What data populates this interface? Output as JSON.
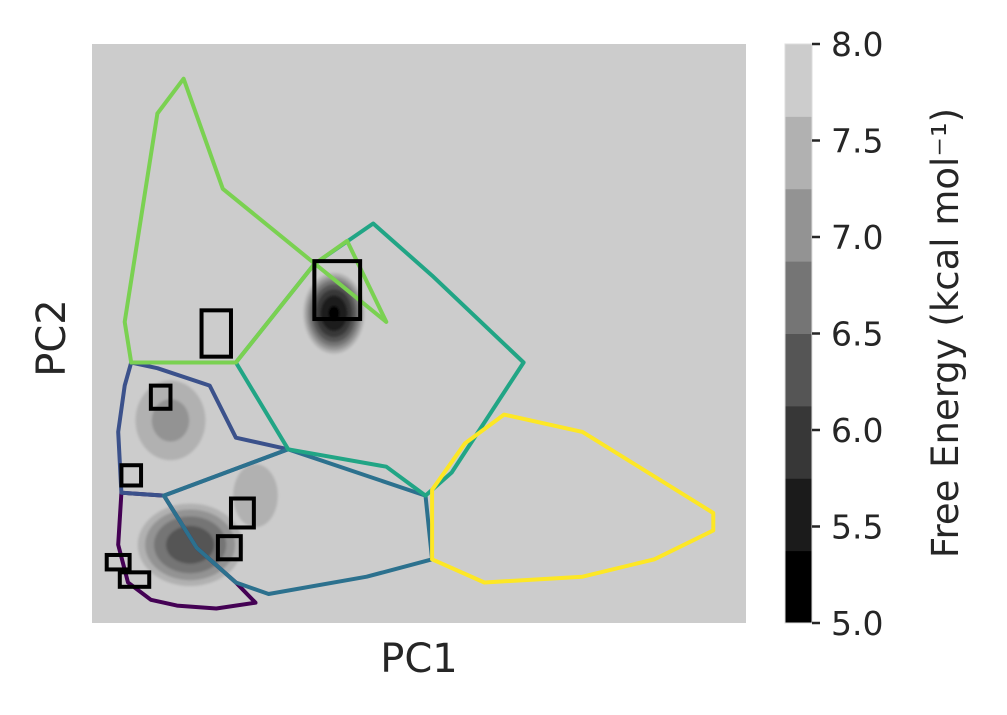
{
  "chart_data": {
    "type": "heatmap",
    "title": "",
    "xlabel": "PC1",
    "ylabel": "PC2",
    "x_ticks_shown": false,
    "y_ticks_shown": false,
    "background_color": "#cccccc",
    "colorbar": {
      "label": "Free Energy (kcal mol⁻¹)",
      "range": [
        5.0,
        8.0
      ],
      "ticks": [
        "5.0",
        "5.5",
        "6.0",
        "6.5",
        "7.0",
        "7.5",
        "8.0"
      ],
      "levels": [
        5.0,
        5.375,
        5.75,
        6.125,
        6.5,
        6.875,
        7.25,
        7.625,
        8.0
      ],
      "level_colors": [
        "#000000",
        "#1b1b1b",
        "#373737",
        "#555555",
        "#757575",
        "#939393",
        "#b1b1b1",
        "#cccccc"
      ]
    },
    "state_boundaries": [
      {
        "color": "#440154",
        "points": [
          [
            0.045,
            0.225
          ],
          [
            0.04,
            0.135
          ],
          [
            0.055,
            0.07
          ],
          [
            0.09,
            0.04
          ],
          [
            0.13,
            0.03
          ],
          [
            0.19,
            0.025
          ],
          [
            0.25,
            0.035
          ],
          [
            0.22,
            0.07
          ],
          [
            0.16,
            0.13
          ],
          [
            0.11,
            0.22
          ],
          [
            0.045,
            0.225
          ]
        ]
      },
      {
        "color": "#3b518b",
        "points": [
          [
            0.06,
            0.45
          ],
          [
            0.05,
            0.41
          ],
          [
            0.04,
            0.33
          ],
          [
            0.045,
            0.225
          ],
          [
            0.11,
            0.22
          ],
          [
            0.3,
            0.3
          ],
          [
            0.22,
            0.32
          ],
          [
            0.18,
            0.41
          ],
          [
            0.1,
            0.44
          ],
          [
            0.06,
            0.45
          ]
        ]
      },
      {
        "color": "#2c718e",
        "points": [
          [
            0.11,
            0.22
          ],
          [
            0.16,
            0.13
          ],
          [
            0.22,
            0.07
          ],
          [
            0.27,
            0.05
          ],
          [
            0.42,
            0.08
          ],
          [
            0.52,
            0.11
          ],
          [
            0.51,
            0.22
          ],
          [
            0.3,
            0.3
          ],
          [
            0.11,
            0.22
          ]
        ]
      },
      {
        "color": "#21a585",
        "points": [
          [
            0.22,
            0.45
          ],
          [
            0.34,
            0.62
          ],
          [
            0.43,
            0.69
          ],
          [
            0.52,
            0.6
          ],
          [
            0.66,
            0.45
          ],
          [
            0.55,
            0.26
          ],
          [
            0.51,
            0.22
          ],
          [
            0.45,
            0.27
          ],
          [
            0.3,
            0.3
          ],
          [
            0.22,
            0.45
          ]
        ]
      },
      {
        "color": "#7ad151",
        "points": [
          [
            0.1,
            0.88
          ],
          [
            0.14,
            0.94
          ],
          [
            0.2,
            0.75
          ],
          [
            0.45,
            0.52
          ],
          [
            0.39,
            0.66
          ],
          [
            0.34,
            0.62
          ],
          [
            0.22,
            0.45
          ],
          [
            0.06,
            0.45
          ],
          [
            0.05,
            0.52
          ],
          [
            0.1,
            0.88
          ]
        ]
      },
      {
        "color": "#fde725",
        "points": [
          [
            0.52,
            0.11
          ],
          [
            0.52,
            0.23
          ],
          [
            0.57,
            0.31
          ],
          [
            0.63,
            0.36
          ],
          [
            0.75,
            0.33
          ],
          [
            0.95,
            0.19
          ],
          [
            0.95,
            0.16
          ],
          [
            0.86,
            0.11
          ],
          [
            0.75,
            0.08
          ],
          [
            0.6,
            0.07
          ],
          [
            0.52,
            0.11
          ]
        ]
      }
    ],
    "minima_boxes": [
      {
        "x": 0.375,
        "y": 0.575,
        "w": 0.07,
        "h": 0.1
      },
      {
        "x": 0.19,
        "y": 0.5,
        "w": 0.045,
        "h": 0.08
      },
      {
        "x": 0.105,
        "y": 0.39,
        "w": 0.03,
        "h": 0.04
      },
      {
        "x": 0.06,
        "y": 0.255,
        "w": 0.03,
        "h": 0.035
      },
      {
        "x": 0.23,
        "y": 0.19,
        "w": 0.035,
        "h": 0.05
      },
      {
        "x": 0.21,
        "y": 0.13,
        "w": 0.035,
        "h": 0.04
      },
      {
        "x": 0.04,
        "y": 0.105,
        "w": 0.035,
        "h": 0.025
      },
      {
        "x": 0.065,
        "y": 0.075,
        "w": 0.045,
        "h": 0.025
      }
    ],
    "density_basins": [
      {
        "cx": 0.37,
        "cy": 0.535,
        "rx": 0.05,
        "ry": 0.075,
        "min_energy": 5.3
      },
      {
        "cx": 0.15,
        "cy": 0.135,
        "rx": 0.09,
        "ry": 0.08,
        "min_energy": 6.2
      },
      {
        "cx": 0.12,
        "cy": 0.35,
        "rx": 0.07,
        "ry": 0.09,
        "min_energy": 7.1
      },
      {
        "cx": 0.25,
        "cy": 0.22,
        "rx": 0.05,
        "ry": 0.08,
        "min_energy": 7.3
      }
    ]
  }
}
